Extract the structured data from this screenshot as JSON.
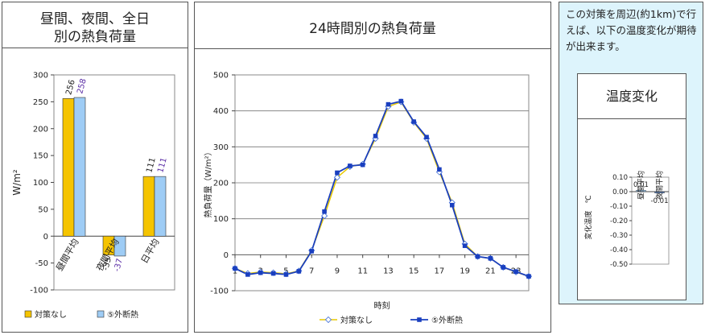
{
  "left_panel": {
    "title_line1": "昼間、夜間、全日",
    "title_line2": "別の熱負荷量",
    "y_axis_label": "W/m²",
    "legend_none": "対策なし",
    "legend_insulation": "⑤外断熱"
  },
  "center_panel": {
    "title": "24時間別の熱負荷量",
    "y_axis_label": "熱負荷量（W/m²）",
    "x_axis_label": "時刻",
    "legend_none": "対策なし",
    "legend_insulation": "⑤外断熱"
  },
  "right_panel": {
    "note": "この対策を周辺(約1km)で行えば、以下の温度変化が期待が出来ます。",
    "box_title": "温度変化",
    "y_axis_label": "変化温度　℃",
    "cat_day": "昼間平均",
    "cat_night": "夜間平均"
  },
  "colors": {
    "yellow": "#F5C400",
    "lightblue": "#9ECCF5",
    "darkblue": "#1A3FBF",
    "panel_bg": "#DDF4FC"
  },
  "chart_data": [
    {
      "type": "bar",
      "categories": [
        "昼間平均",
        "夜間平均",
        "日平均"
      ],
      "series": [
        {
          "name": "対策なし",
          "values": [
            256,
            -35,
            111
          ],
          "labels": [
            "256",
            "-35",
            "111"
          ]
        },
        {
          "name": "⑤外断熱",
          "values": [
            258,
            -37,
            111
          ],
          "labels": [
            "258",
            "-37",
            "111"
          ]
        }
      ],
      "ylim": [
        -100,
        300
      ],
      "yticks": [
        "-100",
        "-50",
        "0",
        "50",
        "100",
        "150",
        "200",
        "250",
        "300"
      ],
      "ylabel": "W/m²"
    },
    {
      "type": "line",
      "title": "24時間別の熱負荷量",
      "x": [
        1,
        2,
        3,
        4,
        5,
        6,
        7,
        8,
        9,
        10,
        11,
        12,
        13,
        14,
        15,
        16,
        17,
        18,
        19,
        20,
        21,
        22,
        23,
        24
      ],
      "xticks": [
        "1",
        "3",
        "5",
        "7",
        "9",
        "11",
        "13",
        "15",
        "17",
        "19",
        "21",
        "23"
      ],
      "series": [
        {
          "name": "対策なし",
          "values": [
            -38,
            -52,
            -48,
            -50,
            -53,
            -45,
            12,
            108,
            215,
            245,
            252,
            323,
            412,
            425,
            368,
            323,
            230,
            145,
            30,
            -5,
            -10,
            -35,
            -48,
            -60
          ]
        },
        {
          "name": "⑤外断熱",
          "values": [
            -38,
            -55,
            -50,
            -52,
            -55,
            -46,
            10,
            120,
            228,
            247,
            250,
            330,
            418,
            427,
            370,
            327,
            237,
            138,
            25,
            -5,
            -10,
            -35,
            -47,
            -60
          ]
        }
      ],
      "ylim": [
        -100,
        500
      ],
      "yticks": [
        "-100",
        "0",
        "100",
        "200",
        "300",
        "400",
        "500"
      ],
      "xlabel": "時刻",
      "ylabel": "熱負荷量（W/m²）"
    },
    {
      "type": "bar",
      "title": "温度変化",
      "categories": [
        "昼間平均",
        "夜間平均"
      ],
      "values": [
        0.01,
        -0.01
      ],
      "labels": [
        "0.01",
        "-0.01"
      ],
      "ylim": [
        -0.5,
        0.1
      ],
      "yticks": [
        "0.10",
        "0.00",
        "-0.10",
        "-0.20",
        "-0.30",
        "-0.40",
        "-0.50"
      ],
      "ylabel": "変化温度　℃"
    }
  ]
}
